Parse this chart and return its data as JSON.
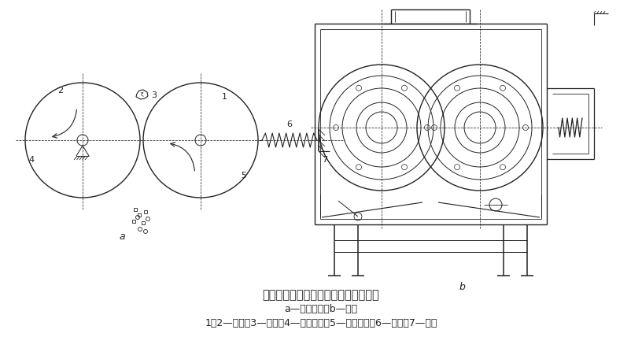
{
  "title": "双辊式破碎机的工作原理及结构示意图",
  "subtitle": "a—工作原理；b—结构",
  "caption": "1，2—辊子；3—物料；4—固定轴承；5—可动轴承；6—弹簧；7—机架",
  "title_fontsize": 10.5,
  "subtitle_fontsize": 9,
  "caption_fontsize": 9,
  "bg_color": "#ffffff",
  "line_color": "#222222"
}
